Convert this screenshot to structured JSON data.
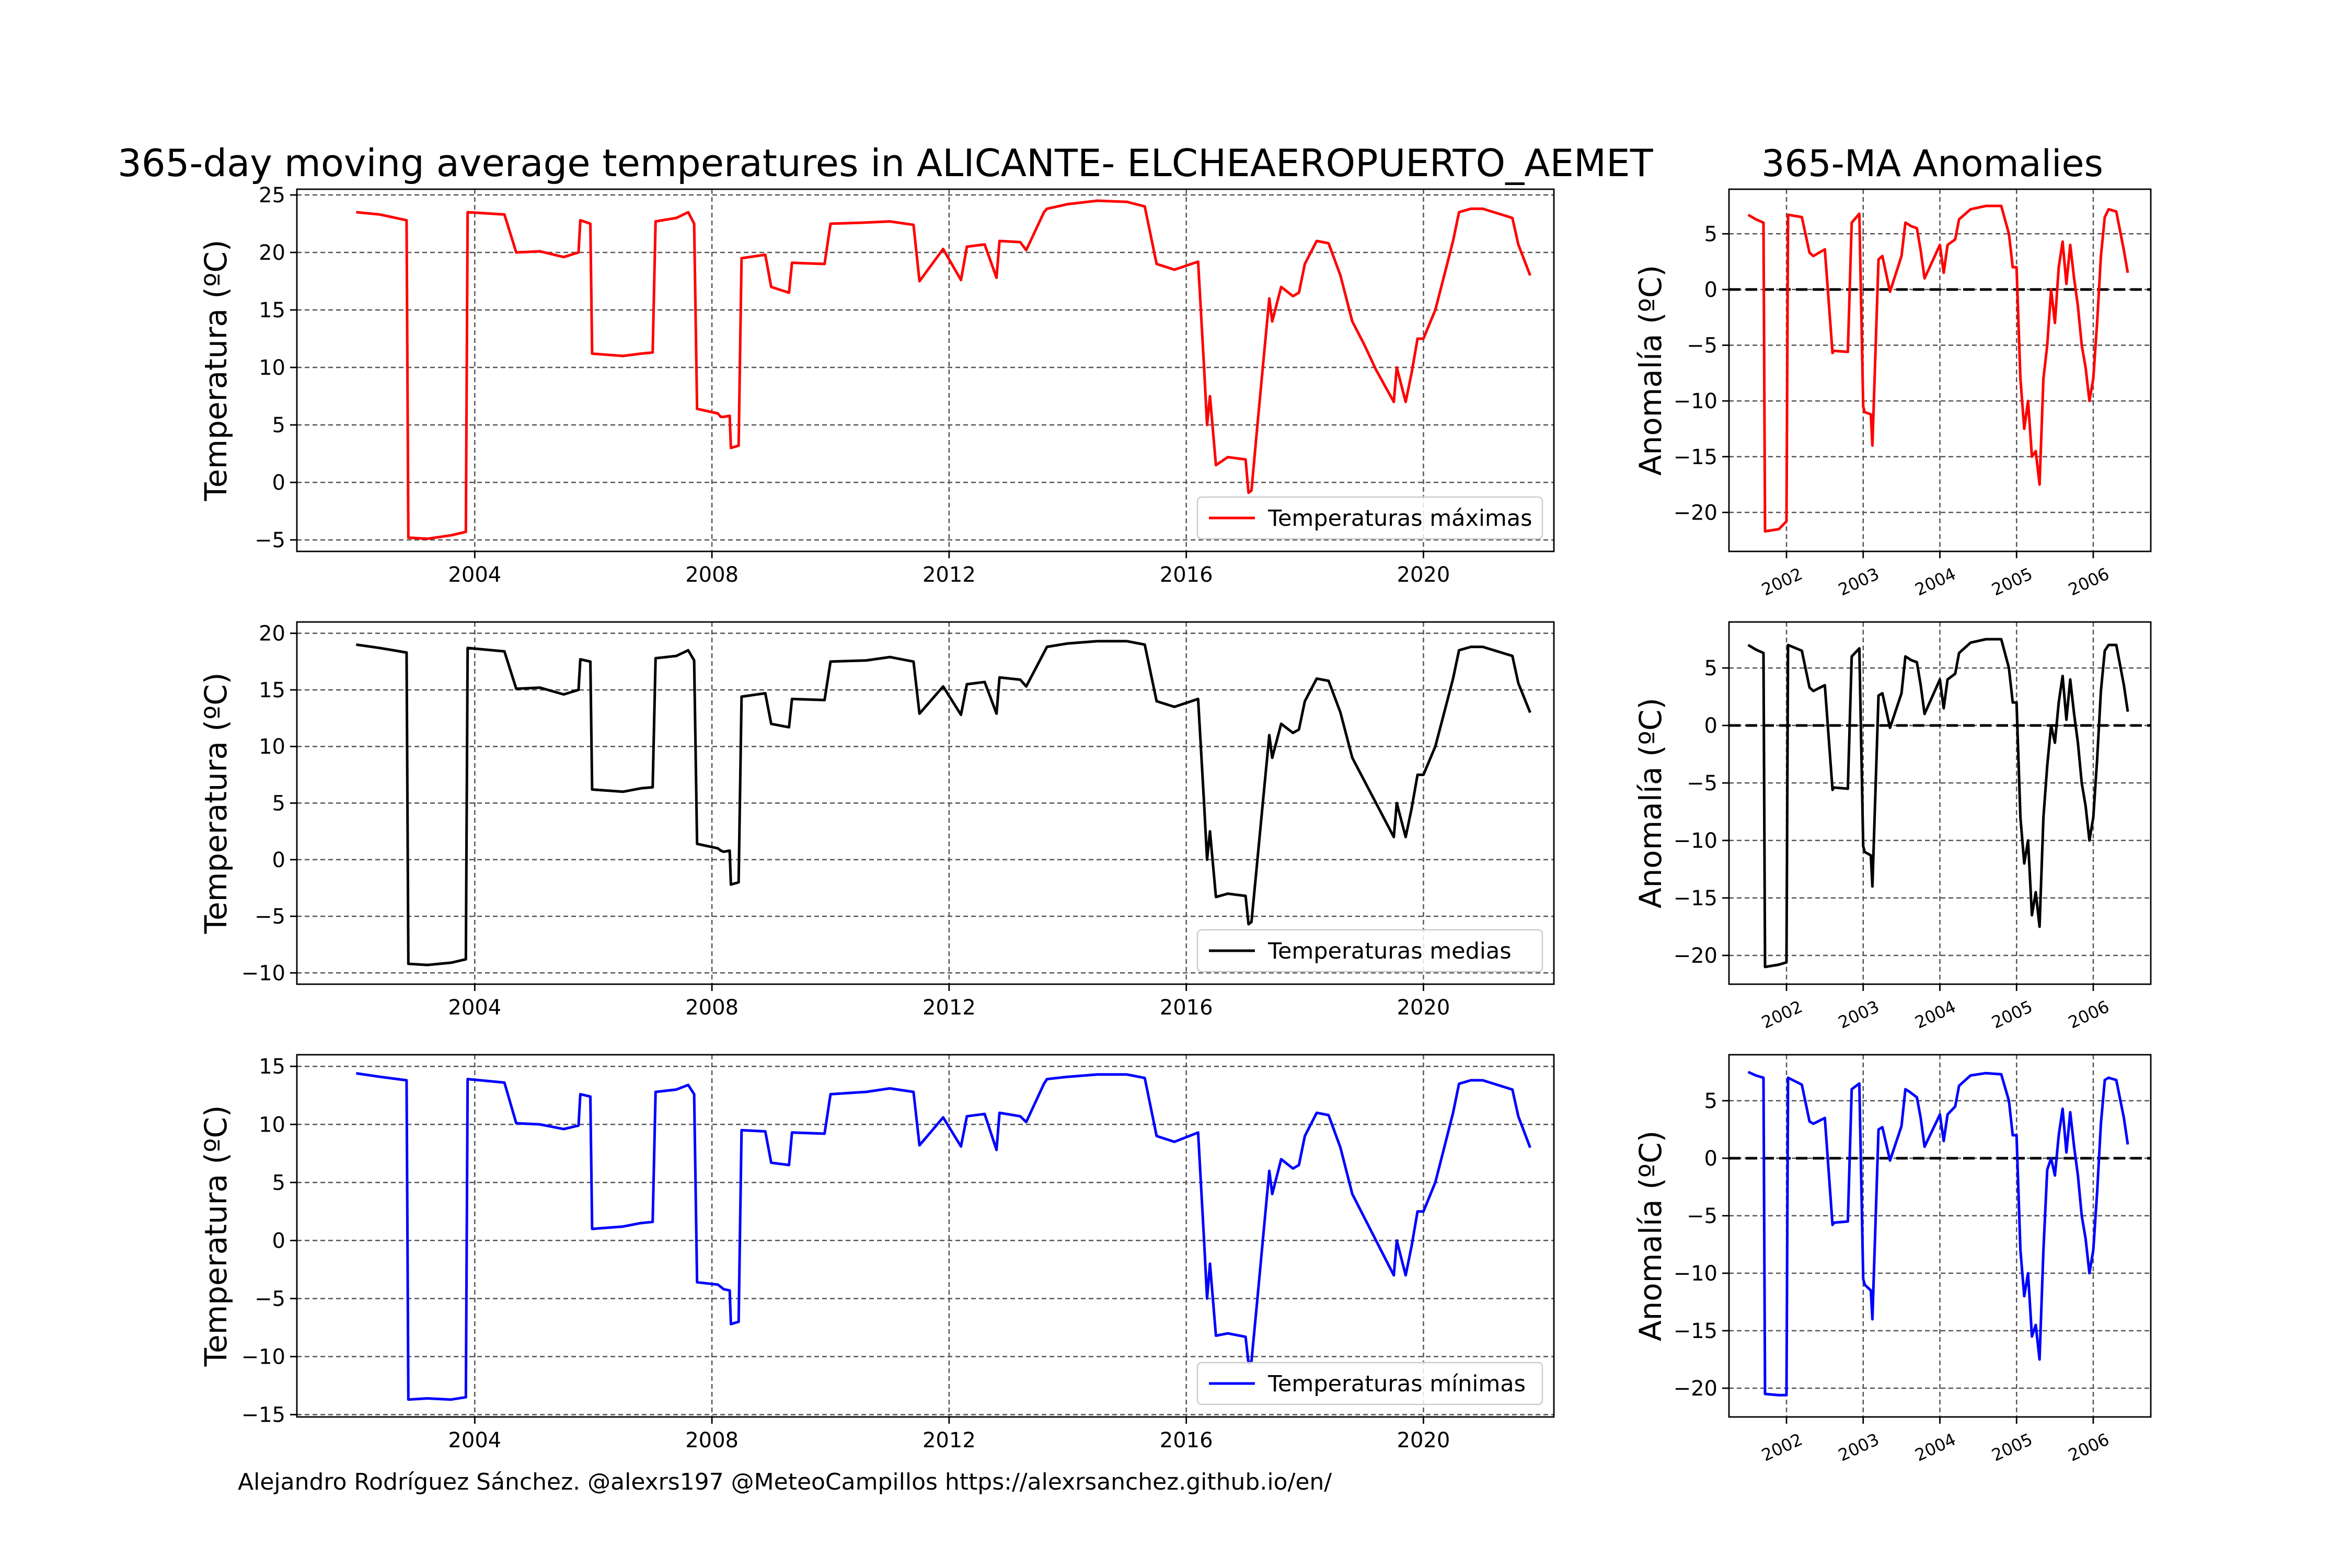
{
  "title": "365-day moving average temperatures in ALICANTE- ELCHEAEROPUERTO_AEMET",
  "anomaly_title": "365-MA Anomalies",
  "footer": "Alejandro Rodríguez Sánchez. @alexrs197 @MeteoCampillos   https://alexrsanchez.github.io/en/",
  "colors": {
    "max": "#ff0000",
    "mean": "#000000",
    "min": "#0000ff",
    "grid": "#555555"
  },
  "chart_data": [
    {
      "type": "line",
      "ylabel": "Temperatura (ºC)",
      "legend": "Temperaturas máximas",
      "legend_loc": "lower right",
      "color": "#ff0000",
      "xlim": [
        2001.0,
        2022.2
      ],
      "ylim": [
        -6,
        25.5
      ],
      "xticks": [
        2004,
        2008,
        2012,
        2016,
        2020
      ],
      "yticks": [
        -5,
        0,
        5,
        10,
        15,
        20,
        25
      ],
      "grid": true,
      "x": [
        2002.0,
        2002.4,
        2002.85,
        2002.88,
        2003.2,
        2003.6,
        2003.85,
        2003.88,
        2004.5,
        2004.7,
        2005.1,
        2005.5,
        2005.75,
        2005.78,
        2005.95,
        2005.98,
        2006.5,
        2006.8,
        2007.0,
        2007.05,
        2007.4,
        2007.6,
        2007.7,
        2007.75,
        2008.1,
        2008.15,
        2008.2,
        2008.3,
        2008.32,
        2008.45,
        2008.5,
        2008.9,
        2009.0,
        2009.3,
        2009.35,
        2009.9,
        2010.0,
        2010.6,
        2011.0,
        2011.4,
        2011.5,
        2011.9,
        2012.2,
        2012.3,
        2012.6,
        2012.8,
        2012.85,
        2013.2,
        2013.3,
        2013.6,
        2013.65,
        2014.0,
        2014.5,
        2015.0,
        2015.3,
        2015.5,
        2015.8,
        2016.2,
        2016.3,
        2016.35,
        2016.4,
        2016.5,
        2016.7,
        2017.0,
        2017.05,
        2017.1,
        2017.2,
        2017.3,
        2017.4,
        2017.45,
        2017.6,
        2017.8,
        2017.9,
        2018.0,
        2018.2,
        2018.4,
        2018.6,
        2018.75,
        2018.8,
        2019.0,
        2019.2,
        2019.5,
        2019.55,
        2019.7,
        2019.8,
        2019.9,
        2020.0,
        2020.2,
        2020.3,
        2020.4,
        2020.5,
        2020.6,
        2020.8,
        2021.0,
        2021.5,
        2021.6,
        2021.8
      ],
      "y": [
        23.5,
        23.3,
        22.8,
        -4.8,
        -4.9,
        -4.6,
        -4.3,
        23.5,
        23.3,
        20.0,
        20.1,
        19.6,
        20.0,
        22.8,
        22.5,
        11.2,
        11.0,
        11.2,
        11.3,
        22.7,
        23.0,
        23.5,
        22.5,
        6.4,
        6.0,
        5.7,
        5.7,
        5.8,
        3.0,
        3.2,
        19.5,
        19.8,
        17.0,
        16.5,
        19.1,
        19.0,
        22.5,
        22.6,
        22.7,
        22.4,
        17.5,
        20.3,
        17.6,
        20.5,
        20.7,
        17.8,
        21.0,
        20.9,
        20.2,
        23.5,
        23.8,
        24.2,
        24.5,
        24.4,
        24.0,
        19.0,
        18.5,
        19.2,
        10.0,
        5.0,
        7.5,
        1.5,
        2.2,
        2.0,
        -0.9,
        -0.7,
        5.0,
        10.5,
        16.0,
        14.0,
        17.0,
        16.2,
        16.5,
        19.0,
        21.0,
        20.8,
        18.0,
        15.0,
        14.0,
        12.0,
        9.8,
        7.0,
        10.0,
        7.0,
        9.5,
        12.5,
        12.5,
        15.0,
        17.0,
        19.0,
        21.0,
        23.5,
        23.8,
        23.8,
        23.0,
        20.7,
        18.0
      ]
    },
    {
      "type": "line",
      "ylabel": "Temperatura (ºC)",
      "legend": "Temperaturas medias",
      "legend_loc": "lower right",
      "color": "#000000",
      "xlim": [
        2001.0,
        2022.2
      ],
      "ylim": [
        -11,
        21
      ],
      "xticks": [
        2004,
        2008,
        2012,
        2016,
        2020
      ],
      "yticks": [
        -10,
        -5,
        0,
        5,
        10,
        15,
        20
      ],
      "grid": true,
      "x": [
        2002.0,
        2002.4,
        2002.85,
        2002.88,
        2003.2,
        2003.6,
        2003.85,
        2003.88,
        2004.5,
        2004.7,
        2005.1,
        2005.5,
        2005.75,
        2005.78,
        2005.95,
        2005.98,
        2006.5,
        2006.8,
        2007.0,
        2007.05,
        2007.4,
        2007.6,
        2007.7,
        2007.75,
        2008.1,
        2008.15,
        2008.2,
        2008.3,
        2008.32,
        2008.45,
        2008.5,
        2008.9,
        2009.0,
        2009.3,
        2009.35,
        2009.9,
        2010.0,
        2010.6,
        2011.0,
        2011.4,
        2011.5,
        2011.9,
        2012.2,
        2012.3,
        2012.6,
        2012.8,
        2012.85,
        2013.2,
        2013.3,
        2013.6,
        2013.65,
        2014.0,
        2014.5,
        2015.0,
        2015.3,
        2015.5,
        2015.8,
        2016.2,
        2016.3,
        2016.35,
        2016.4,
        2016.5,
        2016.7,
        2017.0,
        2017.05,
        2017.1,
        2017.2,
        2017.3,
        2017.4,
        2017.45,
        2017.6,
        2017.8,
        2017.9,
        2018.0,
        2018.2,
        2018.4,
        2018.6,
        2018.75,
        2018.8,
        2019.0,
        2019.2,
        2019.5,
        2019.55,
        2019.7,
        2019.8,
        2019.9,
        2020.0,
        2020.2,
        2020.3,
        2020.4,
        2020.5,
        2020.6,
        2020.8,
        2021.0,
        2021.5,
        2021.6,
        2021.8
      ],
      "y": [
        19.0,
        18.7,
        18.3,
        -9.2,
        -9.3,
        -9.1,
        -8.8,
        18.7,
        18.4,
        15.1,
        15.2,
        14.6,
        15.0,
        17.7,
        17.5,
        6.2,
        6.0,
        6.3,
        6.4,
        17.8,
        18.0,
        18.5,
        17.6,
        1.4,
        1.0,
        0.8,
        0.7,
        0.8,
        -2.2,
        -2.0,
        14.4,
        14.7,
        12.0,
        11.7,
        14.2,
        14.1,
        17.5,
        17.6,
        17.9,
        17.5,
        12.9,
        15.3,
        12.8,
        15.5,
        15.7,
        12.9,
        16.1,
        15.9,
        15.3,
        18.3,
        18.8,
        19.1,
        19.3,
        19.3,
        19.0,
        14.0,
        13.5,
        14.2,
        5.0,
        0.0,
        2.5,
        -3.3,
        -3.0,
        -3.2,
        -5.7,
        -5.5,
        0.0,
        5.5,
        11.0,
        9.0,
        12.0,
        11.2,
        11.5,
        14.0,
        16.0,
        15.8,
        13.0,
        10.0,
        9.0,
        7.0,
        5.0,
        2.0,
        5.0,
        2.0,
        4.5,
        7.5,
        7.5,
        10.0,
        12.0,
        14.0,
        16.0,
        18.5,
        18.8,
        18.8,
        18.0,
        15.6,
        13.0
      ]
    },
    {
      "type": "line",
      "ylabel": "Temperatura (ºC)",
      "legend": "Temperaturas mínimas",
      "legend_loc": "lower right",
      "color": "#0000ff",
      "xlim": [
        2001.0,
        2022.2
      ],
      "ylim": [
        -15.2,
        16
      ],
      "xticks": [
        2004,
        2008,
        2012,
        2016,
        2020
      ],
      "yticks": [
        -15,
        -10,
        -5,
        0,
        5,
        10,
        15
      ],
      "grid": true,
      "x": [
        2002.0,
        2002.4,
        2002.85,
        2002.88,
        2003.2,
        2003.6,
        2003.85,
        2003.88,
        2004.5,
        2004.7,
        2005.1,
        2005.5,
        2005.75,
        2005.78,
        2005.95,
        2005.98,
        2006.5,
        2006.8,
        2007.0,
        2007.05,
        2007.4,
        2007.6,
        2007.7,
        2007.75,
        2008.1,
        2008.15,
        2008.2,
        2008.3,
        2008.32,
        2008.45,
        2008.5,
        2008.9,
        2009.0,
        2009.3,
        2009.35,
        2009.9,
        2010.0,
        2010.6,
        2011.0,
        2011.4,
        2011.5,
        2011.9,
        2012.2,
        2012.3,
        2012.6,
        2012.8,
        2012.85,
        2013.2,
        2013.3,
        2013.6,
        2013.65,
        2014.0,
        2014.5,
        2015.0,
        2015.3,
        2015.5,
        2015.8,
        2016.2,
        2016.3,
        2016.35,
        2016.4,
        2016.5,
        2016.7,
        2017.0,
        2017.05,
        2017.1,
        2017.2,
        2017.3,
        2017.4,
        2017.45,
        2017.6,
        2017.8,
        2017.9,
        2018.0,
        2018.2,
        2018.4,
        2018.6,
        2018.75,
        2018.8,
        2019.0,
        2019.2,
        2019.5,
        2019.55,
        2019.7,
        2019.8,
        2019.9,
        2020.0,
        2020.2,
        2020.3,
        2020.4,
        2020.5,
        2020.6,
        2020.8,
        2021.0,
        2021.5,
        2021.6,
        2021.8
      ],
      "y": [
        14.4,
        14.1,
        13.8,
        -13.7,
        -13.6,
        -13.7,
        -13.5,
        13.9,
        13.6,
        10.1,
        10.0,
        9.6,
        9.9,
        12.6,
        12.4,
        1.0,
        1.2,
        1.5,
        1.6,
        12.8,
        13.0,
        13.4,
        12.6,
        -3.6,
        -3.8,
        -4.0,
        -4.2,
        -4.3,
        -7.2,
        -7.0,
        9.5,
        9.4,
        6.7,
        6.5,
        9.3,
        9.2,
        12.6,
        12.8,
        13.1,
        12.8,
        8.2,
        10.6,
        8.1,
        10.7,
        10.9,
        7.8,
        11.0,
        10.7,
        10.2,
        13.5,
        13.9,
        14.1,
        14.3,
        14.3,
        14.0,
        9.0,
        8.5,
        9.3,
        0.0,
        -5.0,
        -2.0,
        -8.2,
        -8.0,
        -8.3,
        -10.6,
        -10.4,
        -5.0,
        0.5,
        6.0,
        4.0,
        7.0,
        6.2,
        6.5,
        9.0,
        11.0,
        10.8,
        8.0,
        5.0,
        4.0,
        2.0,
        0.0,
        -3.0,
        0.0,
        -3.0,
        -0.5,
        2.5,
        2.5,
        5.0,
        7.0,
        9.0,
        11.0,
        13.5,
        13.8,
        13.8,
        13.0,
        10.7,
        8.0
      ]
    },
    {
      "type": "line",
      "ylabel": "Anomalía (ºC)",
      "color": "#ff0000",
      "xlim": [
        2001.25,
        2006.75
      ],
      "ylim": [
        -23.5,
        9
      ],
      "xticks": [
        2002,
        2003,
        2004,
        2005,
        2006
      ],
      "yticks": [
        -20,
        -15,
        -10,
        -5,
        0,
        5
      ],
      "zero_line": true,
      "grid": true,
      "x": [
        2001.5,
        2001.6,
        2001.7,
        2001.72,
        2001.9,
        2002.0,
        2002.02,
        2002.2,
        2002.3,
        2002.35,
        2002.5,
        2002.6,
        2002.62,
        2002.8,
        2002.85,
        2002.95,
        2003.0,
        2003.02,
        2003.1,
        2003.12,
        2003.2,
        2003.25,
        2003.35,
        2003.5,
        2003.55,
        2003.6,
        2003.62,
        2003.7,
        2003.75,
        2003.8,
        2004.0,
        2004.05,
        2004.1,
        2004.2,
        2004.25,
        2004.4,
        2004.6,
        2004.8,
        2004.9,
        2004.95,
        2005.0,
        2005.05,
        2005.1,
        2005.15,
        2005.2,
        2005.25,
        2005.3,
        2005.35,
        2005.4,
        2005.45,
        2005.5,
        2005.55,
        2005.6,
        2005.65,
        2005.7,
        2005.75,
        2005.8,
        2005.85,
        2005.9,
        2005.95,
        2006.0,
        2006.05,
        2006.1,
        2006.15,
        2006.2,
        2006.3,
        2006.4,
        2006.45
      ],
      "y": [
        6.7,
        6.3,
        6.0,
        -21.7,
        -21.5,
        -20.8,
        6.7,
        6.5,
        3.3,
        3.0,
        3.6,
        -5.7,
        -5.5,
        -5.6,
        6.0,
        6.8,
        -10.5,
        -11.0,
        -11.2,
        -14.0,
        2.7,
        3.0,
        -0.2,
        3.0,
        6.0,
        5.8,
        5.7,
        5.5,
        3.5,
        1.0,
        4.0,
        1.5,
        4.0,
        4.5,
        6.3,
        7.2,
        7.5,
        7.5,
        5.0,
        2.0,
        2.0,
        -8.0,
        -12.5,
        -10.0,
        -15.0,
        -14.5,
        -17.5,
        -8.0,
        -5.0,
        0.0,
        -3.0,
        2.0,
        4.3,
        0.5,
        4.0,
        1.0,
        -1.5,
        -5.0,
        -7.0,
        -10.0,
        -8.0,
        -3.0,
        3.0,
        6.5,
        7.2,
        7.0,
        3.5,
        1.5
      ]
    },
    {
      "type": "line",
      "ylabel": "Anomalía (ºC)",
      "color": "#000000",
      "xlim": [
        2001.25,
        2006.75
      ],
      "ylim": [
        -22.5,
        9
      ],
      "xticks": [
        2002,
        2003,
        2004,
        2005,
        2006
      ],
      "yticks": [
        -20,
        -15,
        -10,
        -5,
        0,
        5
      ],
      "zero_line": true,
      "grid": true,
      "x": [
        2001.5,
        2001.6,
        2001.7,
        2001.72,
        2001.9,
        2002.0,
        2002.02,
        2002.2,
        2002.3,
        2002.35,
        2002.5,
        2002.6,
        2002.62,
        2002.8,
        2002.85,
        2002.95,
        2003.0,
        2003.02,
        2003.1,
        2003.12,
        2003.2,
        2003.25,
        2003.35,
        2003.5,
        2003.55,
        2003.6,
        2003.62,
        2003.7,
        2003.75,
        2003.8,
        2004.0,
        2004.05,
        2004.1,
        2004.2,
        2004.25,
        2004.4,
        2004.6,
        2004.8,
        2004.9,
        2004.95,
        2005.0,
        2005.05,
        2005.1,
        2005.15,
        2005.2,
        2005.25,
        2005.3,
        2005.35,
        2005.4,
        2005.45,
        2005.5,
        2005.55,
        2005.6,
        2005.65,
        2005.7,
        2005.75,
        2005.8,
        2005.85,
        2005.9,
        2005.95,
        2006.0,
        2006.05,
        2006.1,
        2006.15,
        2006.2,
        2006.3,
        2006.4,
        2006.45
      ],
      "y": [
        7.0,
        6.6,
        6.3,
        -21.0,
        -20.8,
        -20.6,
        7.0,
        6.5,
        3.3,
        3.0,
        3.5,
        -5.6,
        -5.4,
        -5.5,
        6.0,
        6.7,
        -10.5,
        -11.0,
        -11.3,
        -14.0,
        2.6,
        2.8,
        -0.2,
        2.8,
        6.0,
        5.8,
        5.7,
        5.5,
        3.5,
        1.0,
        4.0,
        1.5,
        4.0,
        4.5,
        6.3,
        7.2,
        7.5,
        7.5,
        5.0,
        2.0,
        2.0,
        -8.0,
        -12.0,
        -10.0,
        -16.5,
        -14.5,
        -17.5,
        -8.0,
        -3.5,
        0.0,
        -1.5,
        2.0,
        4.3,
        0.5,
        4.0,
        1.0,
        -1.5,
        -5.0,
        -7.0,
        -10.0,
        -8.0,
        -3.0,
        3.0,
        6.5,
        7.0,
        7.0,
        3.5,
        1.2
      ]
    },
    {
      "type": "line",
      "ylabel": "Anomalía (ºC)",
      "color": "#0000ff",
      "xlim": [
        2001.25,
        2006.75
      ],
      "ylim": [
        -22.5,
        9
      ],
      "xticks": [
        2002,
        2003,
        2004,
        2005,
        2006
      ],
      "yticks": [
        -20,
        -15,
        -10,
        -5,
        0,
        5
      ],
      "zero_line": true,
      "grid": true,
      "x": [
        2001.5,
        2001.6,
        2001.7,
        2001.72,
        2001.9,
        2002.0,
        2002.02,
        2002.2,
        2002.3,
        2002.35,
        2002.5,
        2002.6,
        2002.62,
        2002.8,
        2002.85,
        2002.95,
        2003.0,
        2003.02,
        2003.1,
        2003.12,
        2003.2,
        2003.25,
        2003.35,
        2003.5,
        2003.55,
        2003.6,
        2003.62,
        2003.7,
        2003.75,
        2003.8,
        2004.0,
        2004.05,
        2004.1,
        2004.2,
        2004.25,
        2004.4,
        2004.6,
        2004.8,
        2004.9,
        2004.95,
        2005.0,
        2005.05,
        2005.1,
        2005.15,
        2005.2,
        2005.25,
        2005.3,
        2005.35,
        2005.4,
        2005.45,
        2005.5,
        2005.55,
        2005.6,
        2005.65,
        2005.7,
        2005.75,
        2005.8,
        2005.85,
        2005.9,
        2005.95,
        2006.0,
        2006.05,
        2006.1,
        2006.15,
        2006.2,
        2006.3,
        2006.4,
        2006.45
      ],
      "y": [
        7.5,
        7.2,
        7.0,
        -20.5,
        -20.6,
        -20.6,
        7.0,
        6.4,
        3.2,
        3.0,
        3.5,
        -5.8,
        -5.6,
        -5.5,
        6.0,
        6.5,
        -10.5,
        -11.0,
        -11.5,
        -14.0,
        2.5,
        2.7,
        -0.2,
        2.8,
        6.0,
        5.8,
        5.7,
        5.3,
        3.5,
        1.0,
        3.8,
        1.5,
        3.8,
        4.5,
        6.3,
        7.2,
        7.4,
        7.3,
        5.0,
        2.0,
        2.0,
        -8.0,
        -12.0,
        -10.0,
        -15.5,
        -14.5,
        -17.5,
        -8.0,
        -1.0,
        0.0,
        -1.5,
        2.0,
        4.3,
        0.5,
        4.0,
        1.0,
        -1.5,
        -5.0,
        -7.0,
        -10.0,
        -8.0,
        -3.0,
        3.0,
        6.8,
        7.0,
        6.8,
        3.5,
        1.2
      ]
    }
  ]
}
